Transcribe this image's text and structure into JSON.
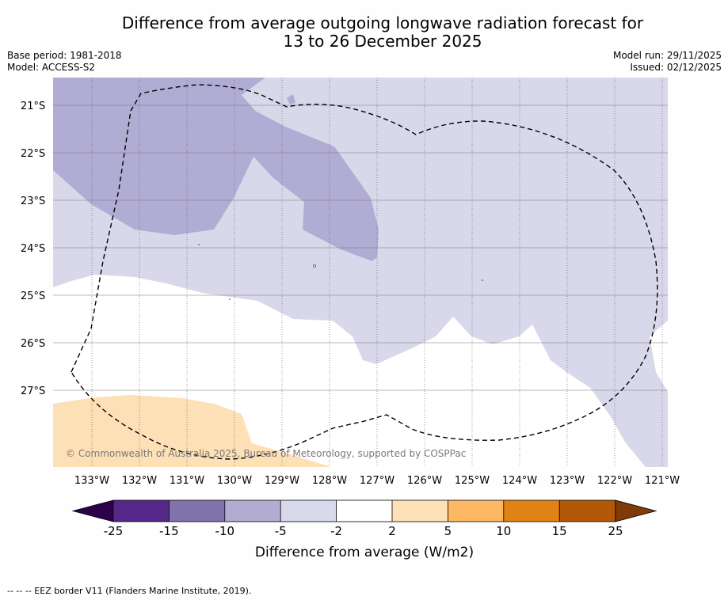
{
  "header": {
    "title_line1": "Difference from average outgoing longwave radiation forecast for",
    "title_line2": "13 to 26 December 2025",
    "base_period": "Base period: 1981-2018",
    "model": "Model: ACCESS-S2",
    "model_run": "Model run: 29/11/2025",
    "issued": "Issued: 02/12/2025"
  },
  "map": {
    "lat_labels": [
      "21°S",
      "22°S",
      "23°S",
      "24°S",
      "25°S",
      "26°S",
      "27°S"
    ],
    "lon_labels": [
      "133°W",
      "132°W",
      "131°W",
      "130°W",
      "129°W",
      "128°W",
      "127°W",
      "126°W",
      "125°W",
      "124°W",
      "123°W",
      "122°W",
      "121°W"
    ],
    "copyright": "© Commonwealth of Australia 2025, Bureau of Meteorology, supported by COSPPac",
    "colors": {
      "lightPurple": "#d8d8ea",
      "midPurple": "#b1acd3",
      "lightOrange": "#fde0b6",
      "white": "#ffffff"
    }
  },
  "colorbar": {
    "ticks": [
      "-25",
      "-15",
      "-10",
      "-5",
      "-2",
      "2",
      "5",
      "10",
      "15",
      "25"
    ],
    "colors": [
      "#2d004b",
      "#542788",
      "#8073ac",
      "#b2abd2",
      "#d8daeb",
      "#ffffff",
      "#fee0b6",
      "#fdb863",
      "#e08214",
      "#b35806",
      "#7f3b08"
    ],
    "label": "Difference from average (W/m2)"
  },
  "footer": {
    "legend": "--  --  -- EEZ border V11 (Flanders Marine Institute, 2019)."
  }
}
